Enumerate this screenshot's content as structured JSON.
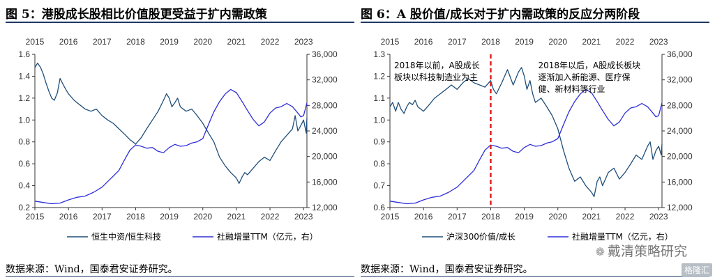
{
  "colors": {
    "series_dark": "#1f4e79",
    "series_blue": "#2f2fd8",
    "divider_red": "#e02020",
    "axis": "#333333",
    "title_rule": "#1f3864"
  },
  "left": {
    "title": "图 5：港股成长股相比价值股更受益于扩内需政策",
    "source": "数据来源：Wind，国泰君安证券研究。",
    "chart_data": {
      "type": "line",
      "top_ticks": [
        "2015",
        "2016",
        "2017",
        "2018",
        "2019",
        "2020",
        "2021",
        "2022",
        "2023"
      ],
      "x_ticks": [
        "2015",
        "2016",
        "2017",
        "2018",
        "2019",
        "2020",
        "2021",
        "2022",
        "2023"
      ],
      "x_range": [
        2015.0,
        2023.1
      ],
      "y_left": {
        "range": [
          0.2,
          1.6
        ],
        "ticks": [
          "0.2",
          "0.4",
          "0.6",
          "0.8",
          "1.0",
          "1.2",
          "1.4",
          "1.6"
        ]
      },
      "y_right": {
        "range": [
          12000,
          36000
        ],
        "ticks": [
          "12,000",
          "16,000",
          "20,000",
          "24,000",
          "28,000",
          "32,000",
          "36,000"
        ]
      },
      "series": [
        {
          "name": "恒生中资/恒生科技",
          "axis": "left",
          "points": [
            [
              2015.0,
              1.48
            ],
            [
              2015.08,
              1.52
            ],
            [
              2015.17,
              1.48
            ],
            [
              2015.25,
              1.42
            ],
            [
              2015.33,
              1.34
            ],
            [
              2015.42,
              1.26
            ],
            [
              2015.5,
              1.2
            ],
            [
              2015.58,
              1.18
            ],
            [
              2015.67,
              1.25
            ],
            [
              2015.75,
              1.38
            ],
            [
              2015.83,
              1.33
            ],
            [
              2015.92,
              1.28
            ],
            [
              2016.0,
              1.24
            ],
            [
              2016.17,
              1.18
            ],
            [
              2016.33,
              1.14
            ],
            [
              2016.5,
              1.1
            ],
            [
              2016.67,
              1.08
            ],
            [
              2016.83,
              1.1
            ],
            [
              2017.0,
              1.04
            ],
            [
              2017.17,
              1.0
            ],
            [
              2017.33,
              0.97
            ],
            [
              2017.5,
              0.92
            ],
            [
              2017.67,
              0.87
            ],
            [
              2017.83,
              0.82
            ],
            [
              2017.92,
              0.8
            ],
            [
              2018.0,
              0.78
            ],
            [
              2018.17,
              0.84
            ],
            [
              2018.33,
              0.92
            ],
            [
              2018.5,
              1.0
            ],
            [
              2018.67,
              1.08
            ],
            [
              2018.83,
              1.18
            ],
            [
              2018.92,
              1.24
            ],
            [
              2019.0,
              1.2
            ],
            [
              2019.08,
              1.12
            ],
            [
              2019.17,
              1.16
            ],
            [
              2019.25,
              1.2
            ],
            [
              2019.33,
              1.12
            ],
            [
              2019.5,
              1.08
            ],
            [
              2019.67,
              1.1
            ],
            [
              2019.83,
              1.04
            ],
            [
              2020.0,
              0.97
            ],
            [
              2020.17,
              0.88
            ],
            [
              2020.33,
              0.8
            ],
            [
              2020.5,
              0.66
            ],
            [
              2020.67,
              0.58
            ],
            [
              2020.83,
              0.52
            ],
            [
              2021.0,
              0.47
            ],
            [
              2021.08,
              0.42
            ],
            [
              2021.17,
              0.48
            ],
            [
              2021.25,
              0.52
            ],
            [
              2021.33,
              0.5
            ],
            [
              2021.5,
              0.56
            ],
            [
              2021.67,
              0.62
            ],
            [
              2021.83,
              0.66
            ],
            [
              2022.0,
              0.63
            ],
            [
              2022.17,
              0.72
            ],
            [
              2022.33,
              0.8
            ],
            [
              2022.5,
              0.86
            ],
            [
              2022.67,
              0.92
            ],
            [
              2022.75,
              1.04
            ],
            [
              2022.83,
              0.9
            ],
            [
              2022.92,
              0.95
            ],
            [
              2023.0,
              1.0
            ],
            [
              2023.08,
              0.88
            ],
            [
              2023.1,
              1.02
            ]
          ]
        },
        {
          "name": "社融增量TTM（亿元，右）",
          "axis": "right",
          "points": [
            [
              2015.0,
              13000
            ],
            [
              2015.25,
              12800
            ],
            [
              2015.5,
              12600
            ],
            [
              2015.75,
              12700
            ],
            [
              2016.0,
              13200
            ],
            [
              2016.25,
              13600
            ],
            [
              2016.5,
              13800
            ],
            [
              2016.75,
              14400
            ],
            [
              2017.0,
              15200
            ],
            [
              2017.25,
              16500
            ],
            [
              2017.5,
              17800
            ],
            [
              2017.67,
              19500
            ],
            [
              2017.83,
              21000
            ],
            [
              2018.0,
              21800
            ],
            [
              2018.17,
              21600
            ],
            [
              2018.33,
              21300
            ],
            [
              2018.5,
              21400
            ],
            [
              2018.67,
              20800
            ],
            [
              2018.83,
              20600
            ],
            [
              2019.0,
              21400
            ],
            [
              2019.17,
              21900
            ],
            [
              2019.33,
              21600
            ],
            [
              2019.5,
              21700
            ],
            [
              2019.67,
              22100
            ],
            [
              2019.83,
              22300
            ],
            [
              2020.0,
              22800
            ],
            [
              2020.17,
              25000
            ],
            [
              2020.33,
              27000
            ],
            [
              2020.5,
              28600
            ],
            [
              2020.67,
              29800
            ],
            [
              2020.83,
              30500
            ],
            [
              2021.0,
              30000
            ],
            [
              2021.17,
              28600
            ],
            [
              2021.33,
              27200
            ],
            [
              2021.5,
              25800
            ],
            [
              2021.67,
              24800
            ],
            [
              2021.83,
              25400
            ],
            [
              2022.0,
              26800
            ],
            [
              2022.17,
              27600
            ],
            [
              2022.33,
              27800
            ],
            [
              2022.5,
              28300
            ],
            [
              2022.67,
              27800
            ],
            [
              2022.83,
              26800
            ],
            [
              2022.92,
              26200
            ],
            [
              2023.0,
              26400
            ],
            [
              2023.1,
              28400
            ]
          ]
        }
      ]
    },
    "legend": [
      "恒生中资/恒生科技",
      "社融增量TTM（亿元，右）"
    ]
  },
  "right": {
    "title": "图 6：A 股价值/成长对于扩内需政策的反应分两阶段",
    "source": "数据来源：Wind，国泰君安证券研究。",
    "chart_data": {
      "type": "line",
      "top_ticks": [
        "2015",
        "2016",
        "2017",
        "2018",
        "2019",
        "2020",
        "2021",
        "2022",
        "2023"
      ],
      "x_ticks": [
        "2015",
        "2016",
        "2017",
        "2018",
        "2019",
        "2020",
        "2021",
        "2022",
        "2023"
      ],
      "x_range": [
        2015.0,
        2023.1
      ],
      "y_left": {
        "range": [
          0.6,
          1.3
        ],
        "ticks": [
          "0.6",
          "0.7",
          "0.8",
          "0.9",
          "1.0",
          "1.1",
          "1.2",
          "1.3"
        ]
      },
      "y_right": {
        "range": [
          12000,
          36000
        ],
        "ticks": [
          "12,000",
          "16,000",
          "20,000",
          "24,000",
          "28,000",
          "32,000",
          "36,000"
        ]
      },
      "divider_x": 2018.0,
      "annotations": [
        {
          "lines": [
            "2018年以前，A股成长",
            "板块以科技制造业为主"
          ],
          "anchor": "left"
        },
        {
          "lines": [
            "2018年以后，A股成长板块",
            "逐渐加入新能源、医疗保",
            "健、新材料等行业"
          ],
          "anchor": "right"
        }
      ],
      "series": [
        {
          "name": "沪深300价值/成长",
          "axis": "left",
          "points": [
            [
              2015.0,
              1.06
            ],
            [
              2015.08,
              1.08
            ],
            [
              2015.17,
              1.04
            ],
            [
              2015.25,
              1.08
            ],
            [
              2015.33,
              1.05
            ],
            [
              2015.42,
              1.03
            ],
            [
              2015.5,
              1.06
            ],
            [
              2015.58,
              1.08
            ],
            [
              2015.67,
              1.07
            ],
            [
              2015.75,
              1.09
            ],
            [
              2015.83,
              1.06
            ],
            [
              2015.92,
              1.05
            ],
            [
              2016.0,
              1.04
            ],
            [
              2016.17,
              1.07
            ],
            [
              2016.33,
              1.1
            ],
            [
              2016.5,
              1.12
            ],
            [
              2016.67,
              1.14
            ],
            [
              2016.83,
              1.16
            ],
            [
              2017.0,
              1.14
            ],
            [
              2017.17,
              1.17
            ],
            [
              2017.33,
              1.19
            ],
            [
              2017.5,
              1.17
            ],
            [
              2017.67,
              1.16
            ],
            [
              2017.83,
              1.15
            ],
            [
              2018.0,
              1.18
            ],
            [
              2018.08,
              1.14
            ],
            [
              2018.17,
              1.12
            ],
            [
              2018.33,
              1.17
            ],
            [
              2018.5,
              1.23
            ],
            [
              2018.67,
              1.16
            ],
            [
              2018.83,
              1.22
            ],
            [
              2018.92,
              1.24
            ],
            [
              2019.0,
              1.2
            ],
            [
              2019.08,
              1.14
            ],
            [
              2019.17,
              1.18
            ],
            [
              2019.25,
              1.12
            ],
            [
              2019.33,
              1.08
            ],
            [
              2019.5,
              1.1
            ],
            [
              2019.67,
              1.06
            ],
            [
              2019.83,
              1.02
            ],
            [
              2020.0,
              0.96
            ],
            [
              2020.17,
              0.86
            ],
            [
              2020.33,
              0.78
            ],
            [
              2020.5,
              0.72
            ],
            [
              2020.67,
              0.74
            ],
            [
              2020.83,
              0.7
            ],
            [
              2021.0,
              0.67
            ],
            [
              2021.08,
              0.65
            ],
            [
              2021.17,
              0.72
            ],
            [
              2021.25,
              0.74
            ],
            [
              2021.33,
              0.7
            ],
            [
              2021.5,
              0.76
            ],
            [
              2021.67,
              0.78
            ],
            [
              2021.83,
              0.73
            ],
            [
              2022.0,
              0.76
            ],
            [
              2022.17,
              0.8
            ],
            [
              2022.33,
              0.84
            ],
            [
              2022.5,
              0.82
            ],
            [
              2022.67,
              0.88
            ],
            [
              2022.75,
              0.9
            ],
            [
              2022.83,
              0.82
            ],
            [
              2022.92,
              0.86
            ],
            [
              2023.0,
              0.88
            ],
            [
              2023.08,
              0.84
            ],
            [
              2023.1,
              0.89
            ]
          ]
        },
        {
          "name": "社融增量TTM（亿元，右）",
          "axis": "right",
          "points": [
            [
              2015.0,
              13000
            ],
            [
              2015.25,
              12800
            ],
            [
              2015.5,
              12600
            ],
            [
              2015.75,
              12700
            ],
            [
              2016.0,
              13200
            ],
            [
              2016.25,
              13600
            ],
            [
              2016.5,
              13800
            ],
            [
              2016.75,
              14400
            ],
            [
              2017.0,
              15200
            ],
            [
              2017.25,
              16500
            ],
            [
              2017.5,
              17800
            ],
            [
              2017.67,
              19500
            ],
            [
              2017.83,
              21000
            ],
            [
              2018.0,
              21800
            ],
            [
              2018.17,
              21600
            ],
            [
              2018.33,
              21300
            ],
            [
              2018.5,
              21400
            ],
            [
              2018.67,
              20800
            ],
            [
              2018.83,
              20600
            ],
            [
              2019.0,
              21400
            ],
            [
              2019.17,
              21900
            ],
            [
              2019.33,
              21600
            ],
            [
              2019.5,
              21700
            ],
            [
              2019.67,
              22100
            ],
            [
              2019.83,
              22300
            ],
            [
              2020.0,
              22800
            ],
            [
              2020.17,
              25000
            ],
            [
              2020.33,
              27000
            ],
            [
              2020.5,
              28600
            ],
            [
              2020.67,
              29800
            ],
            [
              2020.83,
              30500
            ],
            [
              2021.0,
              30000
            ],
            [
              2021.17,
              28600
            ],
            [
              2021.33,
              27200
            ],
            [
              2021.5,
              25800
            ],
            [
              2021.67,
              24800
            ],
            [
              2021.83,
              25400
            ],
            [
              2022.0,
              26800
            ],
            [
              2022.17,
              27600
            ],
            [
              2022.33,
              27800
            ],
            [
              2022.5,
              28300
            ],
            [
              2022.67,
              27800
            ],
            [
              2022.83,
              26800
            ],
            [
              2022.92,
              26200
            ],
            [
              2023.0,
              26400
            ],
            [
              2023.1,
              28400
            ]
          ]
        }
      ]
    },
    "legend": [
      "沪深300价值/成长",
      "社融增量TTM（亿元，右）"
    ]
  },
  "watermark": {
    "text": "戴清策略研究",
    "icon": "wechat-icon"
  },
  "brand": "格隆汇"
}
